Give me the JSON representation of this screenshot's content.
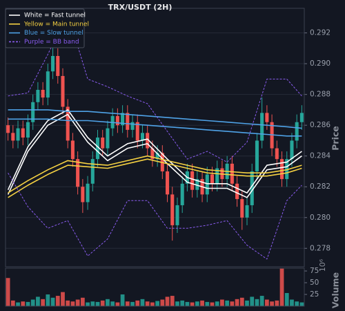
{
  "chart_data": {
    "type": "candlestick",
    "title": "TRX/USDT (2H)",
    "ylabel": "Price",
    "ylim": [
      0.2768,
      0.2936
    ],
    "yticks": [
      0.278,
      {
        "value": 0.28,
        "label": "0.280"
      },
      0.282,
      0.284,
      0.286,
      0.288,
      {
        "value": 0.29,
        "label": "0.290"
      },
      0.292
    ],
    "grid": true,
    "legend": "upper left",
    "up_color": "#26a69a",
    "down_color": "#ef5350",
    "open": [
      0.286,
      0.2855,
      0.285,
      0.2858,
      0.2852,
      0.2862,
      0.2875,
      0.2883,
      0.2878,
      0.2895,
      0.2905,
      0.2892,
      0.2872,
      0.285,
      0.2838,
      0.282,
      0.281,
      0.2822,
      0.2838,
      0.2852,
      0.2845,
      0.2858,
      0.2866,
      0.286,
      0.2868,
      0.2857,
      0.2862,
      0.285,
      0.2855,
      0.2845,
      0.2838,
      0.2842,
      0.283,
      0.2815,
      0.2795,
      0.2808,
      0.2822,
      0.283,
      0.2818,
      0.2825,
      0.2815,
      0.2828,
      0.2822,
      0.2832,
      0.2825,
      0.2835,
      0.2822,
      0.2812,
      0.28,
      0.2808,
      0.283,
      0.285,
      0.2868,
      0.2862,
      0.2845,
      0.2838,
      0.2825,
      0.2838,
      0.285,
      0.2862
    ],
    "high": [
      0.2865,
      0.286,
      0.2863,
      0.2863,
      0.2867,
      0.288,
      0.2888,
      0.2888,
      0.29,
      0.2912,
      0.291,
      0.2897,
      0.2877,
      0.2855,
      0.2843,
      0.2825,
      0.2827,
      0.2843,
      0.2857,
      0.2857,
      0.2863,
      0.2871,
      0.2871,
      0.2873,
      0.2873,
      0.2867,
      0.2867,
      0.286,
      0.286,
      0.285,
      0.2847,
      0.2847,
      0.2835,
      0.282,
      0.2813,
      0.2827,
      0.2835,
      0.2835,
      0.283,
      0.283,
      0.2833,
      0.2833,
      0.2837,
      0.2837,
      0.284,
      0.284,
      0.2827,
      0.2817,
      0.2813,
      0.2835,
      0.2855,
      0.2878,
      0.2873,
      0.2867,
      0.285,
      0.2843,
      0.2843,
      0.2855,
      0.2867,
      0.2873
    ],
    "low": [
      0.285,
      0.2845,
      0.2845,
      0.2847,
      0.2847,
      0.2857,
      0.287,
      0.2873,
      0.2873,
      0.289,
      0.2887,
      0.2867,
      0.2845,
      0.2833,
      0.2815,
      0.2803,
      0.2805,
      0.2817,
      0.2833,
      0.284,
      0.284,
      0.2853,
      0.2855,
      0.2855,
      0.2852,
      0.2852,
      0.2845,
      0.2845,
      0.284,
      0.2833,
      0.2833,
      0.2825,
      0.281,
      0.2785,
      0.279,
      0.2803,
      0.2817,
      0.2813,
      0.2813,
      0.281,
      0.281,
      0.2817,
      0.2817,
      0.282,
      0.282,
      0.2817,
      0.2807,
      0.2792,
      0.2795,
      0.2803,
      0.2825,
      0.2845,
      0.2857,
      0.284,
      0.2833,
      0.282,
      0.282,
      0.2833,
      0.2845,
      0.2857
    ],
    "close": [
      0.2855,
      0.285,
      0.2858,
      0.2852,
      0.2862,
      0.2875,
      0.2883,
      0.2878,
      0.2895,
      0.2905,
      0.2892,
      0.2872,
      0.285,
      0.2838,
      0.282,
      0.281,
      0.2822,
      0.2838,
      0.2852,
      0.2845,
      0.2858,
      0.2866,
      0.286,
      0.2868,
      0.2857,
      0.2862,
      0.285,
      0.2855,
      0.2845,
      0.2838,
      0.2842,
      0.283,
      0.2815,
      0.2795,
      0.2808,
      0.2822,
      0.283,
      0.2818,
      0.2825,
      0.2815,
      0.2828,
      0.2822,
      0.2832,
      0.2825,
      0.2835,
      0.2822,
      0.2812,
      0.28,
      0.2808,
      0.283,
      0.285,
      0.2868,
      0.2862,
      0.2845,
      0.2838,
      0.2825,
      0.2838,
      0.285,
      0.2862,
      0.2868
    ],
    "line_x": [
      0,
      4,
      8,
      12,
      16,
      20,
      24,
      28,
      32,
      36,
      40,
      44,
      48,
      52,
      56,
      59
    ],
    "series": [
      {
        "name": "White = Fast tunnel",
        "color": "#ffffff",
        "upper": [
          0.2818,
          0.2846,
          0.2863,
          0.287,
          0.2852,
          0.284,
          0.2848,
          0.2851,
          0.2838,
          0.2826,
          0.2822,
          0.2822,
          0.2816,
          0.2834,
          0.2836,
          0.2843
        ],
        "lower": [
          0.2815,
          0.2843,
          0.286,
          0.2867,
          0.2849,
          0.2837,
          0.2845,
          0.2848,
          0.2835,
          0.2823,
          0.2819,
          0.2819,
          0.2813,
          0.2831,
          0.2833,
          0.284
        ]
      },
      {
        "name": "Yellow = Main tunnel",
        "color": "#f5d142",
        "upper": [
          0.2816,
          0.2824,
          0.2831,
          0.2837,
          0.2835,
          0.2834,
          0.2837,
          0.284,
          0.2837,
          0.2834,
          0.2831,
          0.283,
          0.2829,
          0.2829,
          0.2831,
          0.2834
        ],
        "lower": [
          0.2813,
          0.2821,
          0.2828,
          0.2834,
          0.2833,
          0.2832,
          0.2835,
          0.2838,
          0.2835,
          0.2832,
          0.2829,
          0.2828,
          0.2827,
          0.2827,
          0.2829,
          0.2832
        ]
      },
      {
        "name": "Blue = Slow tunnel",
        "color": "#4fa3e8",
        "upper": [
          0.287,
          0.287,
          0.287,
          0.2869,
          0.2869,
          0.2868,
          0.2867,
          0.2866,
          0.2865,
          0.2864,
          0.2863,
          0.2862,
          0.2861,
          0.286,
          0.2859,
          0.2858
        ],
        "lower": [
          0.2864,
          0.2864,
          0.2864,
          0.2863,
          0.2863,
          0.2862,
          0.2861,
          0.286,
          0.2859,
          0.2858,
          0.2857,
          0.2856,
          0.2855,
          0.2854,
          0.2853,
          0.2853
        ]
      },
      {
        "name": "Purple = BB band",
        "color": "#8a5cf0",
        "dashed": true,
        "upper": [
          0.2879,
          0.2881,
          0.2906,
          0.2933,
          0.289,
          0.2885,
          0.2879,
          0.2874,
          0.2856,
          0.2838,
          0.2843,
          0.2836,
          0.2849,
          0.289,
          0.289,
          0.2879
        ],
        "lower": [
          0.2829,
          0.2807,
          0.2793,
          0.2798,
          0.2775,
          0.2786,
          0.2811,
          0.2811,
          0.2793,
          0.2793,
          0.2795,
          0.2798,
          0.2782,
          0.2773,
          0.2811,
          0.2821
        ]
      }
    ],
    "volume": {
      "ylabel": "Volume",
      "offset_label": "10⁶",
      "ylim": [
        0,
        81
      ],
      "yticks": [
        25,
        50,
        75
      ],
      "values": [
        60,
        12,
        8,
        10,
        9,
        14,
        20,
        15,
        25,
        18,
        22,
        30,
        12,
        10,
        14,
        18,
        8,
        10,
        9,
        12,
        15,
        10,
        8,
        25,
        10,
        9,
        12,
        15,
        10,
        8,
        11,
        14,
        20,
        22,
        10,
        12,
        9,
        8,
        10,
        12,
        9,
        8,
        10,
        14,
        12,
        10,
        15,
        18,
        12,
        20,
        15,
        22,
        14,
        10,
        12,
        80,
        28,
        14,
        10,
        8
      ]
    }
  }
}
